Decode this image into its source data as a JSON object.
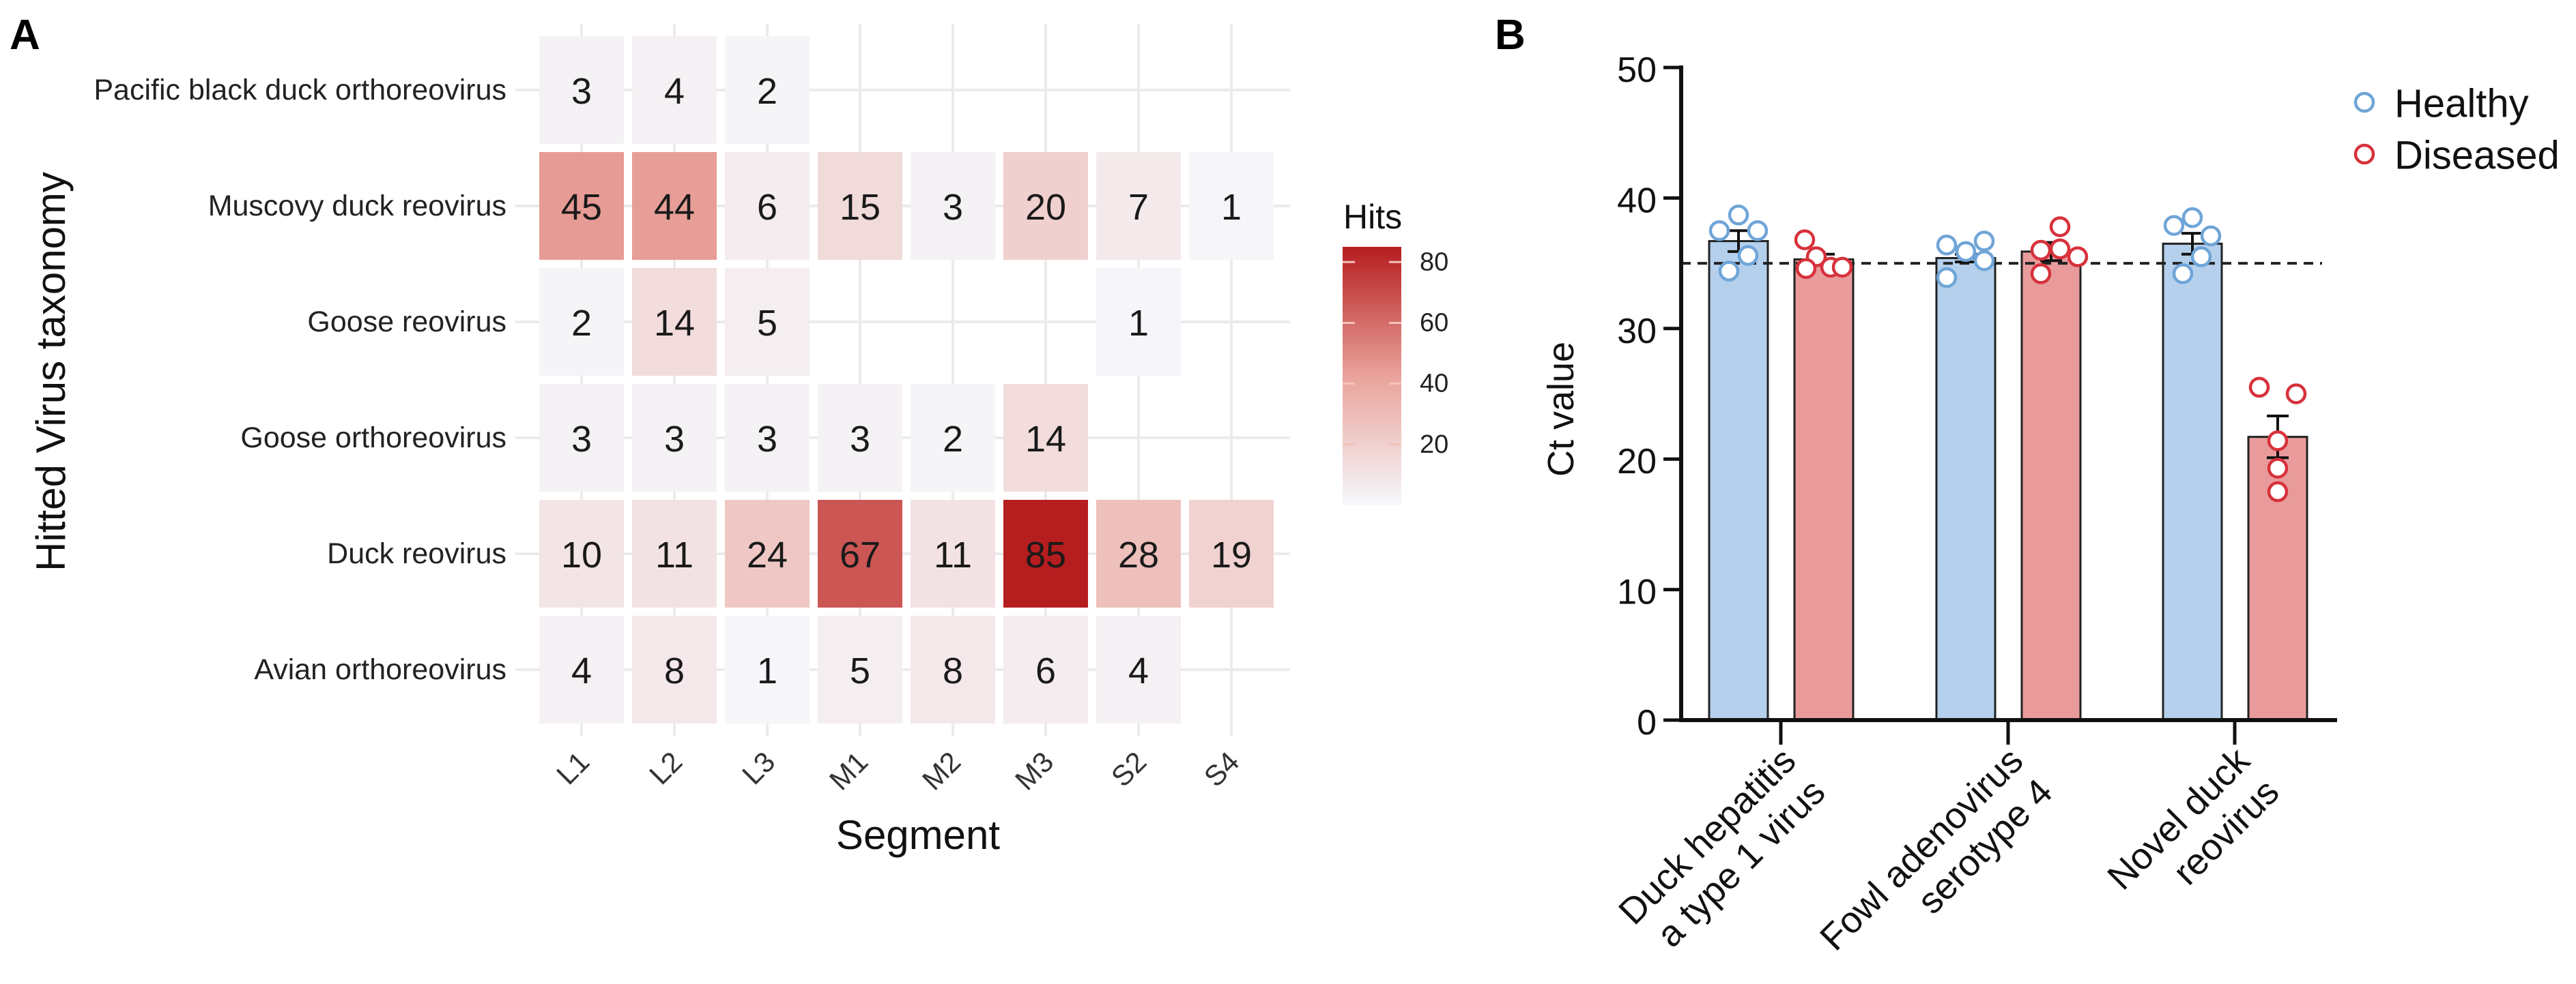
{
  "chart_data": [
    {
      "type": "heatmap",
      "panel_label": "A",
      "xlabel": "Segment",
      "ylabel": "Hitted Virus taxonomy",
      "x_categories": [
        "L1",
        "L2",
        "L3",
        "M1",
        "M2",
        "M3",
        "S2",
        "S4"
      ],
      "y_categories": [
        "Pacific black duck orthoreovirus",
        "Muscovy duck reovirus",
        "Goose reovirus",
        "Goose orthoreovirus",
        "Duck reovirus",
        "Avian orthoreovirus"
      ],
      "values": [
        [
          3,
          4,
          2,
          null,
          null,
          null,
          null,
          null
        ],
        [
          45,
          44,
          6,
          15,
          3,
          20,
          7,
          1
        ],
        [
          2,
          14,
          5,
          null,
          null,
          null,
          1,
          null
        ],
        [
          3,
          3,
          3,
          3,
          2,
          14,
          null,
          null
        ],
        [
          10,
          11,
          24,
          67,
          11,
          85,
          28,
          19
        ],
        [
          4,
          8,
          1,
          5,
          8,
          6,
          4,
          null
        ]
      ],
      "colorbar": {
        "title": "Hits",
        "ticks": [
          20,
          40,
          60,
          80
        ],
        "range": [
          0,
          85
        ],
        "low_color": "#f6f8fc",
        "mid_color": "#e9a39b",
        "high_color": "#b51d1f"
      }
    },
    {
      "type": "bar",
      "panel_label": "B",
      "ylabel": "Ct value",
      "xlabel": "",
      "ylim": [
        0,
        50
      ],
      "yticks": [
        0,
        10,
        20,
        30,
        40,
        50
      ],
      "categories": [
        {
          "lines": [
            "Duck hepatitis",
            "a type 1 virus"
          ]
        },
        {
          "lines": [
            "Fowl adenovirus",
            "serotype 4"
          ]
        },
        {
          "lines": [
            "Novel duck",
            "reovirus"
          ]
        }
      ],
      "reference_line": 35,
      "legend_position": "top-right",
      "series": [
        {
          "name": "Healthy",
          "bar_color": "#b4d0ec",
          "point_color": "#6fa5d8",
          "values": [
            36.7,
            35.4,
            36.5
          ],
          "sem": [
            0.8,
            0.3,
            0.8
          ],
          "points": [
            [
              38.7,
              37.5,
              37.5,
              35.6,
              34.4
            ],
            [
              36.4,
              36.7,
              35.9,
              35.2,
              33.9
            ],
            [
              38.5,
              37.9,
              37.1,
              35.5,
              34.2
            ]
          ]
        },
        {
          "name": "Diseased",
          "bar_color": "#e99b9b",
          "point_color": "#d7323c",
          "values": [
            35.3,
            35.9,
            21.7
          ],
          "sem": [
            0.4,
            0.7,
            1.6
          ],
          "points": [
            [
              36.8,
              35.5,
              34.6,
              34.7,
              34.7
            ],
            [
              37.8,
              36.0,
              36.1,
              35.5,
              34.2
            ],
            [
              25.5,
              25.0,
              21.4,
              19.3,
              17.5
            ]
          ]
        }
      ]
    }
  ]
}
